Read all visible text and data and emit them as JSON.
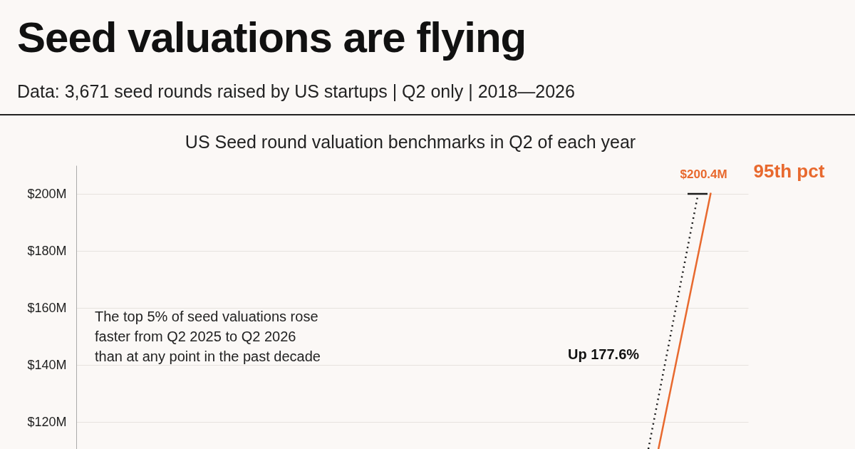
{
  "chart_data": {
    "type": "line",
    "title": "Seed valuations are flying",
    "subtitle": "Data: 3,671 seed rounds raised by US startups | Q2 only | 2018—2026",
    "annotations": [
      "US Seed round valuation benchmarks in Q2 of each year",
      "The top 5% of seed valuations rose\nfaster from Q2 2025 to Q2 2026\nthan at any point in the past decade",
      "Up 177.6%"
    ],
    "categories": [
      null,
      null,
      null,
      null,
      null,
      null,
      null,
      null,
      null
    ],
    "ylim": [
      70,
      210
    ],
    "yticks": [
      {
        "value": 120,
        "label": "$120M"
      },
      {
        "value": 140,
        "label": "$140M"
      },
      {
        "value": 160,
        "label": "$160M"
      },
      {
        "value": 180,
        "label": "$180M"
      },
      {
        "value": 200,
        "label": "$200M"
      }
    ],
    "tick_labels": "y",
    "grid": "y",
    "legend": false,
    "series": [
      {
        "name": "95th pct",
        "color": "#e8692e",
        "values": [
          null,
          null,
          null,
          null,
          null,
          null,
          null,
          72.2,
          200.4
        ],
        "value_labels": [
          null,
          null,
          null,
          null,
          null,
          null,
          null,
          null,
          "$200.4M"
        ]
      }
    ]
  }
}
